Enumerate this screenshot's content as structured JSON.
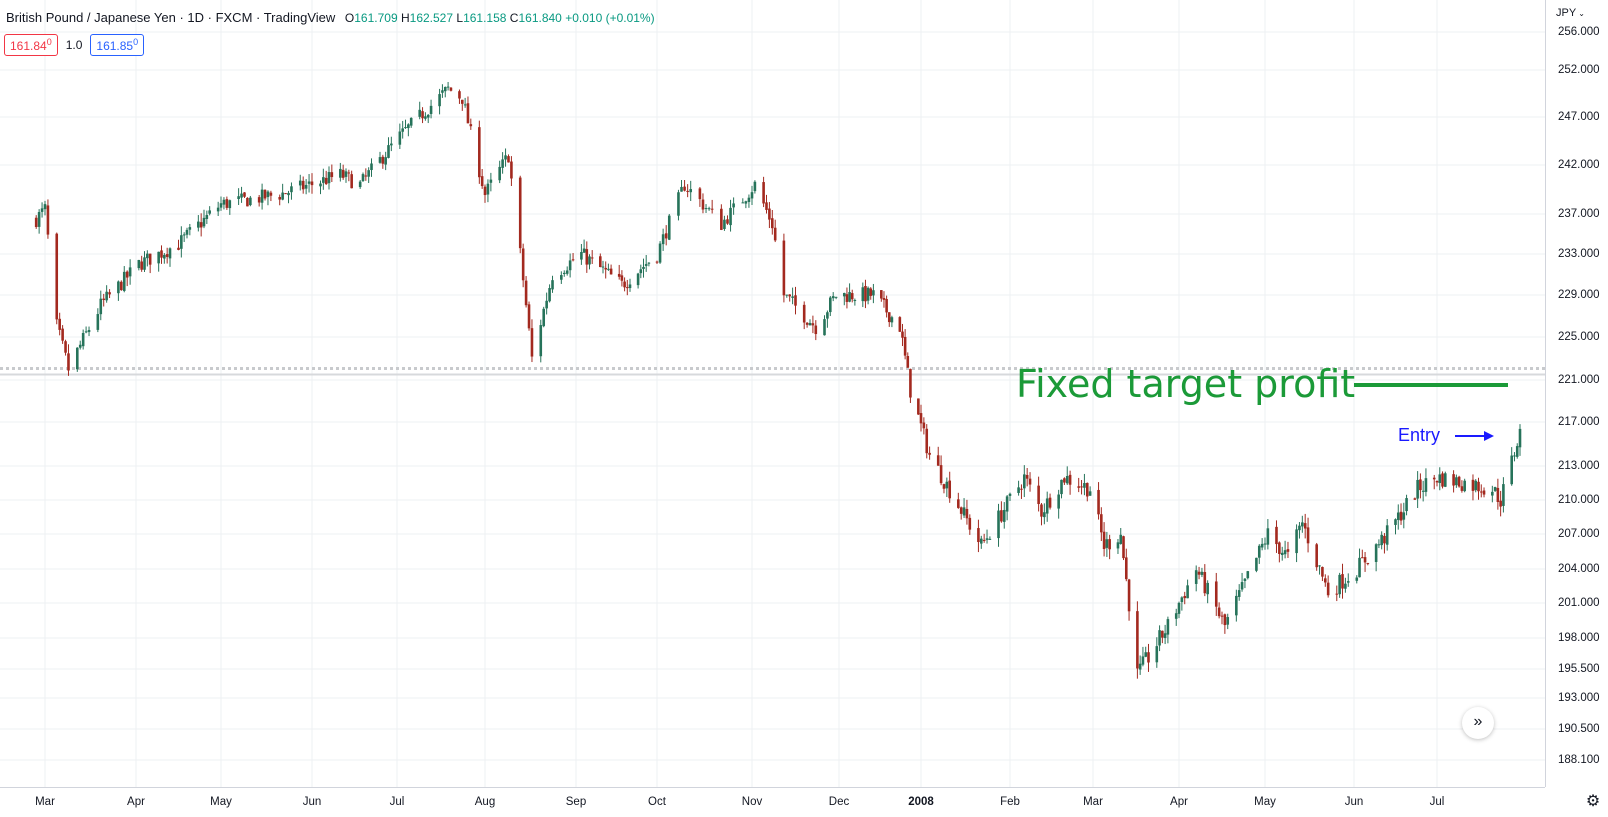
{
  "legend": {
    "title": "British Pound / Japanese Yen · 1D · FXCM · TradingView",
    "open_label": "O",
    "open": "161.709",
    "high_label": "H",
    "high": "162.527",
    "low_label": "L",
    "low": "161.158",
    "close_label": "C",
    "close": "161.840",
    "change": "+0.010 (+0.01%)"
  },
  "quote": {
    "sell": "161.84",
    "sell_sup": "0",
    "qty": "1.0",
    "buy": "161.85",
    "buy_sup": "0"
  },
  "price_axis": {
    "currency": "JPY",
    "ticks": [
      "256.000",
      "252.000",
      "247.000",
      "242.000",
      "237.000",
      "233.000",
      "229.000",
      "225.000",
      "221.000",
      "217.000",
      "213.000",
      "210.000",
      "207.000",
      "204.000",
      "201.000",
      "198.000",
      "195.500",
      "193.000",
      "190.500",
      "188.100"
    ]
  },
  "time_axis": {
    "ticks": [
      {
        "label": "Mar",
        "bold": false
      },
      {
        "label": "Apr",
        "bold": false
      },
      {
        "label": "May",
        "bold": false
      },
      {
        "label": "Jun",
        "bold": false
      },
      {
        "label": "Jul",
        "bold": false
      },
      {
        "label": "Aug",
        "bold": false
      },
      {
        "label": "Sep",
        "bold": false
      },
      {
        "label": "Oct",
        "bold": false
      },
      {
        "label": "Nov",
        "bold": false
      },
      {
        "label": "Dec",
        "bold": false
      },
      {
        "label": "2008",
        "bold": true
      },
      {
        "label": "Feb",
        "bold": false
      },
      {
        "label": "Mar",
        "bold": false
      },
      {
        "label": "Apr",
        "bold": false
      },
      {
        "label": "May",
        "bold": false
      },
      {
        "label": "Jun",
        "bold": false
      },
      {
        "label": "Jul",
        "bold": false
      }
    ]
  },
  "annotations": {
    "target_label": "Fixed target profit",
    "entry_label": "Entry",
    "support_level": 221.7
  },
  "colors": {
    "up": "#26735a",
    "down": "#a3291f",
    "grid": "#eef0f3",
    "target": "#1b9a38",
    "entry": "#1a1aff"
  },
  "icons": {
    "currency_dropdown": "chevron-down-icon",
    "settings": "gear-icon",
    "scroll": "double-chevron-right-icon"
  },
  "chart_data": {
    "type": "candlestick",
    "series": "GBP/JPY daily, Mar 2007 – Jul 2008",
    "anchors": [
      [
        "2007-02-26",
        236.5
      ],
      [
        "2007-03-01",
        237.5
      ],
      [
        "2007-03-05",
        226
      ],
      [
        "2007-03-09",
        222
      ],
      [
        "2007-03-20",
        228
      ],
      [
        "2007-04-02",
        232
      ],
      [
        "2007-04-16",
        234
      ],
      [
        "2007-05-01",
        238
      ],
      [
        "2007-05-21",
        239
      ],
      [
        "2007-06-11",
        241
      ],
      [
        "2007-06-18",
        240
      ],
      [
        "2007-07-02",
        245
      ],
      [
        "2007-07-19",
        250
      ],
      [
        "2007-07-24",
        249
      ],
      [
        "2007-08-01",
        239
      ],
      [
        "2007-08-09",
        243
      ],
      [
        "2007-08-17",
        223
      ],
      [
        "2007-08-24",
        231
      ],
      [
        "2007-09-03",
        233
      ],
      [
        "2007-09-18",
        230
      ],
      [
        "2007-10-01",
        233
      ],
      [
        "2007-10-10",
        240
      ],
      [
        "2007-10-22",
        236
      ],
      [
        "2007-11-02",
        240
      ],
      [
        "2007-11-08",
        236
      ],
      [
        "2007-11-12",
        229
      ],
      [
        "2007-11-23",
        226
      ],
      [
        "2007-11-30",
        229
      ],
      [
        "2007-12-14",
        229
      ],
      [
        "2007-12-24",
        226
      ],
      [
        "2007-12-28",
        220
      ],
      [
        "2008-01-04",
        214
      ],
      [
        "2008-01-22",
        206
      ],
      [
        "2008-02-06",
        212
      ],
      [
        "2008-02-12",
        209
      ],
      [
        "2008-02-20",
        212
      ],
      [
        "2008-02-29",
        211
      ],
      [
        "2008-03-05",
        206
      ],
      [
        "2008-03-11",
        207
      ],
      [
        "2008-03-17",
        195
      ],
      [
        "2008-03-28",
        199
      ],
      [
        "2008-04-07",
        204
      ],
      [
        "2008-04-17",
        199
      ],
      [
        "2008-05-02",
        207
      ],
      [
        "2008-05-09",
        205
      ],
      [
        "2008-05-14",
        208
      ],
      [
        "2008-05-23",
        202
      ],
      [
        "2008-06-02",
        204
      ],
      [
        "2008-06-13",
        207
      ],
      [
        "2008-06-24",
        211
      ],
      [
        "2008-07-01",
        212
      ],
      [
        "2008-07-21",
        211
      ],
      [
        "2008-07-24",
        210
      ],
      [
        "2008-07-31",
        216
      ]
    ]
  }
}
